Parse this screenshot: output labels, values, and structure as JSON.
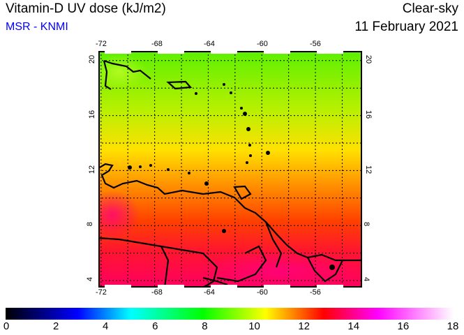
{
  "header": {
    "title": "Vitamin-D UV dose (kJ/m2)",
    "source": "MSR - KNMI",
    "condition": "Clear-sky",
    "date": "11 February 2021"
  },
  "map": {
    "lon_ticks": [
      "-72",
      "-68",
      "-64",
      "-60",
      "-56"
    ],
    "lat_ticks": [
      "20",
      "16",
      "12",
      "8",
      "4"
    ],
    "lon_range": [
      -72.2,
      -52.5
    ],
    "lat_range": [
      3.4,
      20.7
    ]
  },
  "colorbar": {
    "labels": [
      "0",
      "2",
      "4",
      "6",
      "8",
      "10",
      "12",
      "14",
      "16",
      "18"
    ],
    "min": 0,
    "max": 18
  }
}
